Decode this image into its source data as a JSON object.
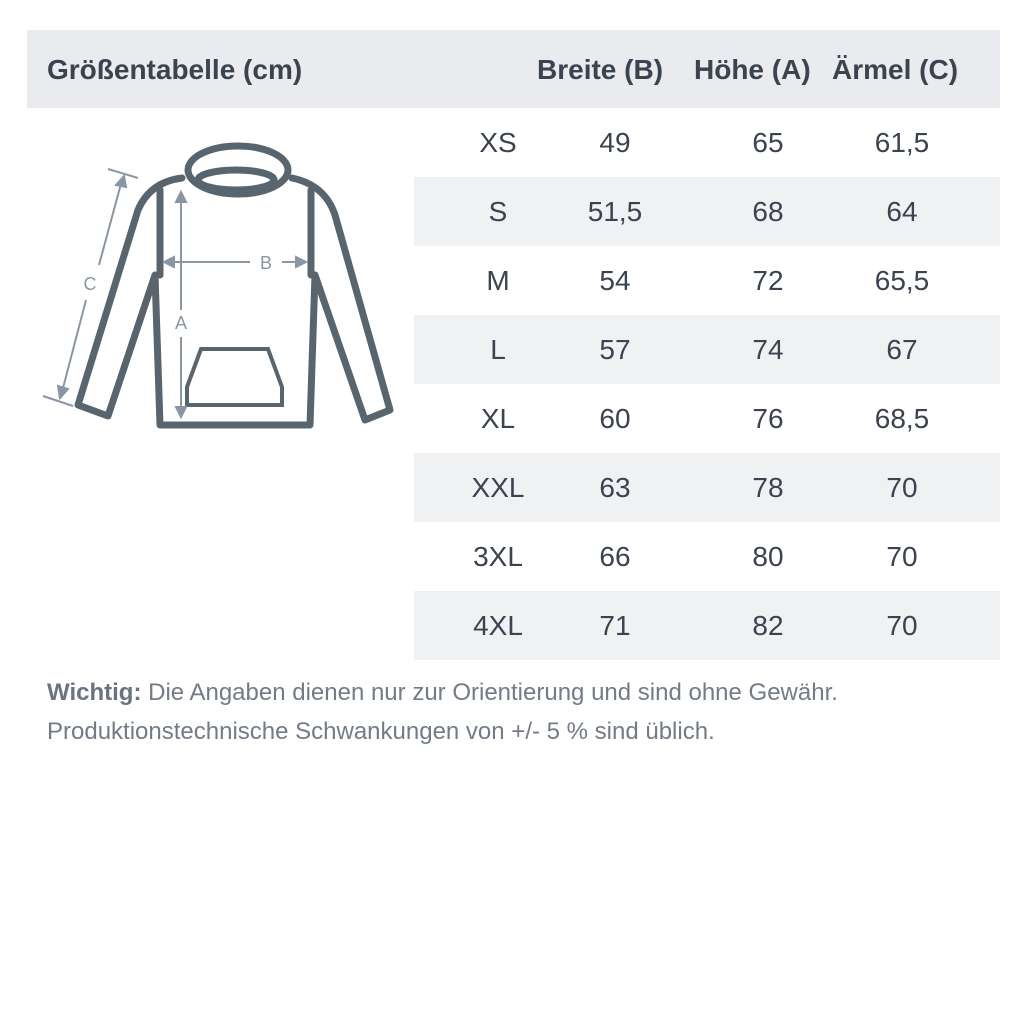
{
  "header": {
    "title": "Größentabelle (cm)",
    "col_breite": "Breite (B)",
    "col_hoehe": "Höhe (A)",
    "col_aermel": "Ärmel (C)"
  },
  "diagram": {
    "label_a": "A",
    "label_b": "B",
    "label_c": "C"
  },
  "rows": [
    {
      "size": "XS",
      "breite": "49",
      "hoehe": "65",
      "aermel": "61,5"
    },
    {
      "size": "S",
      "breite": "51,5",
      "hoehe": "68",
      "aermel": "64"
    },
    {
      "size": "M",
      "breite": "54",
      "hoehe": "72",
      "aermel": "65,5"
    },
    {
      "size": "L",
      "breite": "57",
      "hoehe": "74",
      "aermel": "67"
    },
    {
      "size": "XL",
      "breite": "60",
      "hoehe": "76",
      "aermel": "68,5"
    },
    {
      "size": "XXL",
      "breite": "63",
      "hoehe": "78",
      "aermel": "70"
    },
    {
      "size": "3XL",
      "breite": "66",
      "hoehe": "80",
      "aermel": "70"
    },
    {
      "size": "4XL",
      "breite": "71",
      "hoehe": "82",
      "aermel": "70"
    }
  ],
  "footer": {
    "bold": "Wichtig:",
    "line1": " Die Angaben dienen nur zur Orientierung und sind ohne Gewähr.",
    "line2": "Produktionstechnische Schwankungen von +/- 5 % sind üblich."
  },
  "colors": {
    "header_bg": "#eaebef",
    "row_shade": "#f0f1f3",
    "text": "#3b4350",
    "garment": "#59656e",
    "arrows": "#8a96a3"
  }
}
